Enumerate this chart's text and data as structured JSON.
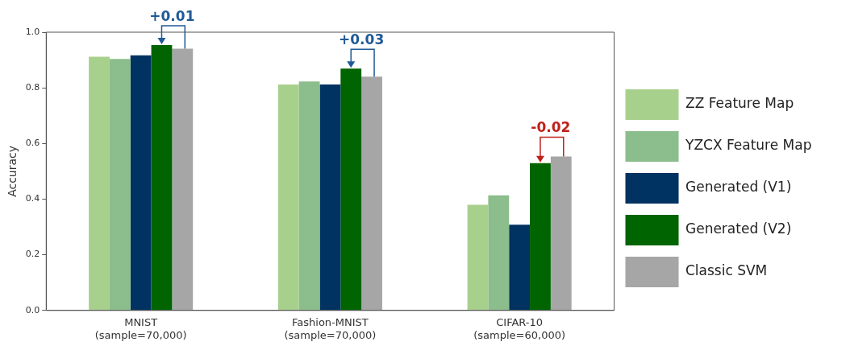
{
  "chart_data": {
    "type": "bar",
    "ylabel": "Accuracy",
    "categories": [
      "MNIST\n(sample=70,000)",
      "Fashion-MNIST\n(sample=70,000)",
      "CIFAR-10\n(sample=60,000)"
    ],
    "series": [
      {
        "name": "ZZ Feature Map",
        "color": "#a8d08d",
        "values": [
          0.912,
          0.812,
          0.38
        ]
      },
      {
        "name": "YZCX Feature Map",
        "color": "#8cbd8c",
        "values": [
          0.904,
          0.823,
          0.414
        ]
      },
      {
        "name": "Generated (V1)",
        "color": "#003361",
        "values": [
          0.917,
          0.812,
          0.308
        ]
      },
      {
        "name": "Generated (V2)",
        "color": "#006400",
        "values": [
          0.954,
          0.869,
          0.529
        ]
      },
      {
        "name": "Classic SVM",
        "color": "#a6a6a6",
        "values": [
          0.941,
          0.84,
          0.553
        ]
      }
    ],
    "ylim": [
      0,
      1.0
    ],
    "yticks": [
      {
        "value": 0,
        "label": "0.0"
      },
      0.2,
      0.4,
      0.6,
      0.8,
      {
        "value": 1.0,
        "label": "1.0"
      }
    ],
    "grid": false,
    "legend": "right",
    "annotations": [
      "+0.01",
      "+0.03",
      "-0.02"
    ]
  }
}
